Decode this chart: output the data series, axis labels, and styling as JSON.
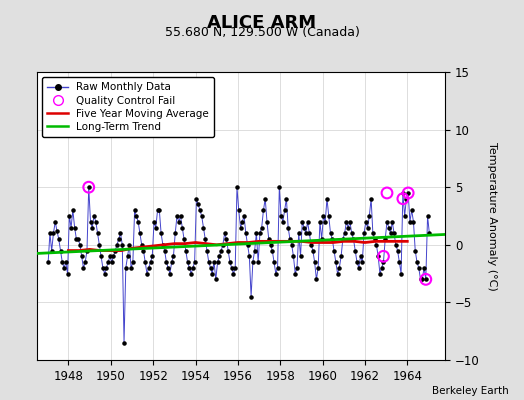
{
  "title": "ALICE ARM",
  "subtitle": "55.680 N, 129.500 W (Canada)",
  "ylabel": "Temperature Anomaly (°C)",
  "credit": "Berkeley Earth",
  "xlim": [
    1946.5,
    1965.8
  ],
  "ylim": [
    -10,
    15
  ],
  "yticks": [
    -10,
    -5,
    0,
    5,
    10,
    15
  ],
  "xticks": [
    1948,
    1950,
    1952,
    1954,
    1956,
    1958,
    1960,
    1962,
    1964
  ],
  "bg_color": "#e0e0e0",
  "plot_bg_color": "#ffffff",
  "raw_color": "#4444cc",
  "marker_color": "#000000",
  "moving_avg_color": "#dd0000",
  "trend_color": "#00bb00",
  "qc_fail_color": "#ff00ff",
  "raw_monthly_x": [
    1947.042,
    1947.125,
    1947.208,
    1947.292,
    1947.375,
    1947.458,
    1947.542,
    1947.625,
    1947.708,
    1947.792,
    1947.875,
    1947.958,
    1948.042,
    1948.125,
    1948.208,
    1948.292,
    1948.375,
    1948.458,
    1948.542,
    1948.625,
    1948.708,
    1948.792,
    1948.875,
    1948.958,
    1949.042,
    1949.125,
    1949.208,
    1949.292,
    1949.375,
    1949.458,
    1949.542,
    1949.625,
    1949.708,
    1949.792,
    1949.875,
    1949.958,
    1950.042,
    1950.125,
    1950.208,
    1950.292,
    1950.375,
    1950.458,
    1950.542,
    1950.625,
    1950.708,
    1950.792,
    1950.875,
    1950.958,
    1951.042,
    1951.125,
    1951.208,
    1951.292,
    1951.375,
    1951.458,
    1951.542,
    1951.625,
    1951.708,
    1951.792,
    1951.875,
    1951.958,
    1952.042,
    1952.125,
    1952.208,
    1952.292,
    1952.375,
    1952.458,
    1952.542,
    1952.625,
    1952.708,
    1952.792,
    1952.875,
    1952.958,
    1953.042,
    1953.125,
    1953.208,
    1953.292,
    1953.375,
    1953.458,
    1953.542,
    1953.625,
    1953.708,
    1953.792,
    1953.875,
    1953.958,
    1954.042,
    1954.125,
    1954.208,
    1954.292,
    1954.375,
    1954.458,
    1954.542,
    1954.625,
    1954.708,
    1954.792,
    1954.875,
    1954.958,
    1955.042,
    1955.125,
    1955.208,
    1955.292,
    1955.375,
    1955.458,
    1955.542,
    1955.625,
    1955.708,
    1955.792,
    1955.875,
    1955.958,
    1956.042,
    1956.125,
    1956.208,
    1956.292,
    1956.375,
    1956.458,
    1956.542,
    1956.625,
    1956.708,
    1956.792,
    1956.875,
    1956.958,
    1957.042,
    1957.125,
    1957.208,
    1957.292,
    1957.375,
    1957.458,
    1957.542,
    1957.625,
    1957.708,
    1957.792,
    1957.875,
    1957.958,
    1958.042,
    1958.125,
    1958.208,
    1958.292,
    1958.375,
    1958.458,
    1958.542,
    1958.625,
    1958.708,
    1958.792,
    1958.875,
    1958.958,
    1959.042,
    1959.125,
    1959.208,
    1959.292,
    1959.375,
    1959.458,
    1959.542,
    1959.625,
    1959.708,
    1959.792,
    1959.875,
    1959.958,
    1960.042,
    1960.125,
    1960.208,
    1960.292,
    1960.375,
    1960.458,
    1960.542,
    1960.625,
    1960.708,
    1960.792,
    1960.875,
    1960.958,
    1961.042,
    1961.125,
    1961.208,
    1961.292,
    1961.375,
    1961.458,
    1961.542,
    1961.625,
    1961.708,
    1961.792,
    1961.875,
    1961.958,
    1962.042,
    1962.125,
    1962.208,
    1962.292,
    1962.375,
    1962.458,
    1962.542,
    1962.625,
    1962.708,
    1962.792,
    1962.875,
    1962.958,
    1963.042,
    1963.125,
    1963.208,
    1963.292,
    1963.375,
    1963.458,
    1963.542,
    1963.625,
    1963.708,
    1963.792,
    1963.875,
    1963.958,
    1964.042,
    1964.125,
    1964.208,
    1964.292,
    1964.375,
    1964.458,
    1964.542,
    1964.625,
    1964.708,
    1964.792,
    1964.875,
    1964.958,
    1965.042
  ],
  "raw_monthly_y": [
    -1.5,
    1.0,
    -0.5,
    1.0,
    2.0,
    1.2,
    0.5,
    -0.5,
    -1.5,
    -2.0,
    -1.5,
    -2.5,
    2.5,
    1.5,
    3.0,
    1.5,
    0.5,
    0.5,
    0.0,
    -1.0,
    -2.0,
    -1.5,
    -0.5,
    5.0,
    2.0,
    1.5,
    2.5,
    2.0,
    1.0,
    0.0,
    -1.0,
    -2.0,
    -2.5,
    -2.0,
    -1.5,
    -1.0,
    -1.5,
    -1.0,
    -0.5,
    0.0,
    0.5,
    1.0,
    0.0,
    -8.5,
    -2.0,
    -1.0,
    0.0,
    -2.0,
    -1.5,
    3.0,
    2.5,
    2.0,
    1.0,
    0.0,
    -0.5,
    -1.5,
    -2.5,
    -2.0,
    -1.5,
    -1.0,
    2.0,
    1.5,
    3.0,
    3.0,
    1.0,
    0.0,
    -0.5,
    -1.5,
    -2.0,
    -2.5,
    -1.5,
    -1.0,
    1.0,
    2.5,
    2.0,
    2.5,
    1.5,
    0.5,
    -0.5,
    -1.5,
    -2.0,
    -2.5,
    -2.0,
    -1.5,
    4.0,
    3.5,
    3.0,
    2.5,
    1.5,
    0.5,
    -0.5,
    -1.5,
    -2.0,
    -2.5,
    -1.5,
    -3.0,
    -1.5,
    -1.0,
    -0.5,
    0.0,
    1.0,
    0.5,
    -0.5,
    -1.5,
    -2.0,
    -2.5,
    -2.0,
    5.0,
    3.0,
    1.5,
    2.0,
    2.5,
    1.0,
    0.0,
    -1.0,
    -4.5,
    -1.5,
    -0.5,
    1.0,
    -1.5,
    1.0,
    1.5,
    3.0,
    4.0,
    2.0,
    0.5,
    0.0,
    -0.5,
    -1.5,
    -2.5,
    -2.0,
    5.0,
    2.5,
    2.0,
    3.0,
    4.0,
    1.5,
    0.5,
    0.0,
    -1.0,
    -2.5,
    -2.0,
    1.0,
    -1.0,
    2.0,
    1.5,
    1.0,
    2.0,
    1.0,
    0.0,
    -0.5,
    -1.5,
    -3.0,
    -2.0,
    2.0,
    0.5,
    2.5,
    2.0,
    4.0,
    2.5,
    1.0,
    0.5,
    -0.5,
    -1.5,
    -2.5,
    -2.0,
    -1.0,
    0.5,
    1.0,
    2.0,
    1.5,
    2.0,
    1.0,
    0.5,
    -0.5,
    -1.5,
    -2.0,
    -1.0,
    -1.5,
    1.0,
    2.0,
    1.5,
    2.5,
    4.0,
    1.0,
    0.5,
    0.0,
    -1.0,
    -2.5,
    -2.0,
    -1.5,
    0.5,
    2.0,
    1.5,
    1.0,
    2.0,
    1.0,
    0.0,
    -0.5,
    -1.5,
    -2.5,
    4.5,
    2.5,
    4.0,
    4.5,
    2.0,
    3.0,
    2.0,
    -0.5,
    -1.5,
    -2.0,
    -3.0,
    -3.0,
    -2.0,
    -3.0,
    2.5,
    1.0
  ],
  "qc_fail_x": [
    1948.958,
    1962.875,
    1963.042,
    1963.792,
    1964.042,
    1964.875
  ],
  "qc_fail_y": [
    5.0,
    -1.0,
    4.5,
    4.0,
    4.5,
    -3.0
  ],
  "moving_avg_x": [
    1948.0,
    1948.5,
    1949.0,
    1949.5,
    1950.0,
    1950.5,
    1951.0,
    1951.5,
    1952.0,
    1952.5,
    1953.0,
    1953.5,
    1954.0,
    1954.5,
    1955.0,
    1955.5,
    1956.0,
    1956.5,
    1957.0,
    1957.5,
    1958.0,
    1958.5,
    1959.0,
    1959.5,
    1960.0,
    1960.5,
    1961.0,
    1961.5,
    1962.0,
    1962.5,
    1963.0,
    1963.5,
    1964.0
  ],
  "moving_avg_y": [
    -0.5,
    -0.5,
    -0.4,
    -0.5,
    -0.5,
    -0.5,
    -0.3,
    -0.2,
    -0.1,
    0.0,
    0.1,
    0.1,
    0.2,
    0.1,
    0.0,
    0.1,
    0.2,
    0.2,
    0.3,
    0.3,
    0.3,
    0.3,
    0.3,
    0.2,
    0.2,
    0.2,
    0.3,
    0.3,
    0.2,
    0.3,
    0.3,
    0.3,
    0.3
  ],
  "trend_x": [
    1946.5,
    1965.8
  ],
  "trend_y": [
    -0.75,
    0.9
  ],
  "title_fontsize": 13,
  "subtitle_fontsize": 9,
  "label_fontsize": 8,
  "tick_fontsize": 8.5
}
